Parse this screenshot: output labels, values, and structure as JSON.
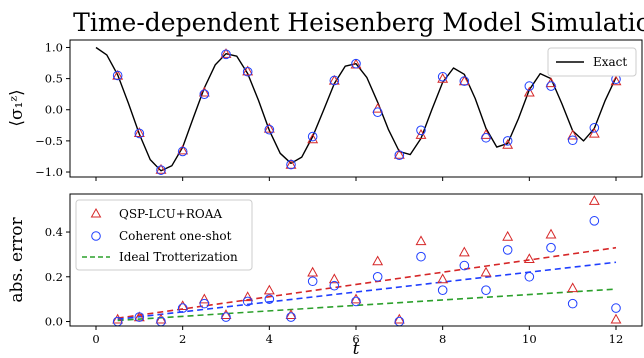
{
  "chart_data": [
    {
      "type": "line",
      "title": "Time-dependent Heisenberg Model Simulation",
      "ylabel": "⟨σ₁ᶻ⟩",
      "xlabel": "",
      "xlim": [
        -0.6,
        12.6
      ],
      "ylim": [
        -1.08,
        1.12
      ],
      "xticks": [
        0,
        2,
        4,
        6,
        8,
        10,
        12
      ],
      "yticks": [
        -1.0,
        -0.5,
        0.0,
        0.5,
        1.0
      ],
      "ytick_labels": [
        "−1.0",
        "−0.5",
        "0.0",
        "0.5",
        "1.0"
      ],
      "grid": false,
      "legend_position": "top-right",
      "legend": [
        "Exact"
      ],
      "colors": {
        "exact": "#000000",
        "qsp": "#d62728",
        "coherent": "#1f3fff"
      },
      "exact_curve": {
        "name": "Exact",
        "x": [
          0,
          0.25,
          0.5,
          0.75,
          1,
          1.25,
          1.5,
          1.75,
          2,
          2.25,
          2.5,
          2.75,
          3,
          3.25,
          3.5,
          3.75,
          4,
          4.25,
          4.5,
          4.75,
          5,
          5.25,
          5.5,
          5.75,
          6,
          6.25,
          6.5,
          6.75,
          7,
          7.25,
          7.5,
          7.75,
          8,
          8.25,
          8.5,
          8.75,
          9,
          9.25,
          9.5,
          9.75,
          10,
          10.25,
          10.5,
          10.75,
          11,
          11.25,
          11.5,
          11.75,
          12
        ],
        "y": [
          1.0,
          0.88,
          0.56,
          0.1,
          -0.39,
          -0.8,
          -0.98,
          -0.9,
          -0.6,
          -0.12,
          0.35,
          0.72,
          0.9,
          0.86,
          0.58,
          0.15,
          -0.33,
          -0.7,
          -0.86,
          -0.76,
          -0.43,
          -0.01,
          0.42,
          0.7,
          0.74,
          0.52,
          0.12,
          -0.32,
          -0.67,
          -0.72,
          -0.46,
          0.0,
          0.44,
          0.67,
          0.57,
          0.18,
          -0.3,
          -0.6,
          -0.54,
          -0.14,
          0.32,
          0.58,
          0.5,
          0.1,
          -0.34,
          -0.5,
          -0.3,
          0.15,
          0.52
        ]
      },
      "series": [
        {
          "marker": "triangle",
          "x": [
            0.5,
            1,
            1.5,
            2,
            2.5,
            3,
            3.5,
            4,
            4.5,
            5,
            5.5,
            6,
            6.5,
            7,
            7.5,
            8,
            8.5,
            9,
            9.5,
            10,
            10.5,
            11,
            11.5,
            12
          ],
          "values": [
            0.55,
            -0.37,
            -0.96,
            -0.65,
            0.28,
            0.9,
            0.62,
            -0.3,
            -0.88,
            -0.47,
            0.47,
            0.73,
            0.02,
            -0.72,
            -0.4,
            0.5,
            0.46,
            -0.4,
            -0.56,
            0.28,
            0.43,
            -0.41,
            -0.38,
            0.46
          ]
        },
        {
          "marker": "circle",
          "x": [
            0.5,
            1,
            1.5,
            2,
            2.5,
            3,
            3.5,
            4,
            4.5,
            5,
            5.5,
            6,
            6.5,
            7,
            7.5,
            8,
            8.5,
            9,
            9.5,
            10,
            10.5,
            11,
            11.5,
            12
          ],
          "values": [
            0.55,
            -0.38,
            -0.97,
            -0.67,
            0.25,
            0.89,
            0.61,
            -0.32,
            -0.88,
            -0.43,
            0.47,
            0.74,
            -0.04,
            -0.73,
            -0.33,
            0.53,
            0.46,
            -0.45,
            -0.5,
            0.38,
            0.38,
            -0.49,
            -0.29,
            0.49
          ]
        }
      ]
    },
    {
      "type": "scatter",
      "title": "",
      "xlabel": "t",
      "ylabel": "abs. error",
      "xlim": [
        -0.6,
        12.6
      ],
      "ylim": [
        -0.02,
        0.57
      ],
      "xticks": [
        0,
        2,
        4,
        6,
        8,
        10,
        12
      ],
      "yticks": [
        0.0,
        0.2,
        0.4
      ],
      "ytick_labels": [
        "0.0",
        "0.2",
        "0.4"
      ],
      "grid": false,
      "legend_position": "top-left",
      "colors": {
        "qsp": "#d62728",
        "coherent": "#1f3fff",
        "trotter": "#2ca02c"
      },
      "series": [
        {
          "name": "QSP-LCU+ROAA",
          "marker": "triangle",
          "x": [
            0.5,
            1,
            1.5,
            2,
            2.5,
            3,
            3.5,
            4,
            4.5,
            5,
            5.5,
            6,
            6.5,
            7,
            7.5,
            8,
            8.5,
            9,
            9.5,
            10,
            10.5,
            11,
            11.5,
            12
          ],
          "values": [
            0.01,
            0.02,
            0.01,
            0.07,
            0.1,
            0.03,
            0.11,
            0.14,
            0.03,
            0.22,
            0.19,
            0.1,
            0.27,
            0.01,
            0.36,
            0.19,
            0.31,
            0.22,
            0.38,
            0.28,
            0.39,
            0.15,
            0.54,
            0.01
          ]
        },
        {
          "name": "Coherent one-shot",
          "marker": "circle",
          "x": [
            0.5,
            1,
            1.5,
            2,
            2.5,
            3,
            3.5,
            4,
            4.5,
            5,
            5.5,
            6,
            6.5,
            7,
            7.5,
            8,
            8.5,
            9,
            9.5,
            10,
            10.5,
            11,
            11.5,
            12
          ],
          "values": [
            0.0,
            0.02,
            0.0,
            0.06,
            0.08,
            0.02,
            0.09,
            0.1,
            0.02,
            0.18,
            0.16,
            0.09,
            0.2,
            0.0,
            0.29,
            0.14,
            0.25,
            0.14,
            0.32,
            0.2,
            0.33,
            0.08,
            0.45,
            0.06
          ]
        },
        {
          "name": "Ideal Trotterization",
          "marker": "none",
          "x": [],
          "values": []
        }
      ],
      "trend_lines": [
        {
          "x": [
            0.5,
            12
          ],
          "y": [
            0.015,
            0.33
          ],
          "color": "#d62728"
        },
        {
          "x": [
            0.5,
            12
          ],
          "y": [
            0.01,
            0.265
          ],
          "color": "#1f3fff"
        },
        {
          "x": [
            0.5,
            12
          ],
          "y": [
            0.005,
            0.145
          ],
          "color": "#2ca02c"
        }
      ]
    }
  ]
}
